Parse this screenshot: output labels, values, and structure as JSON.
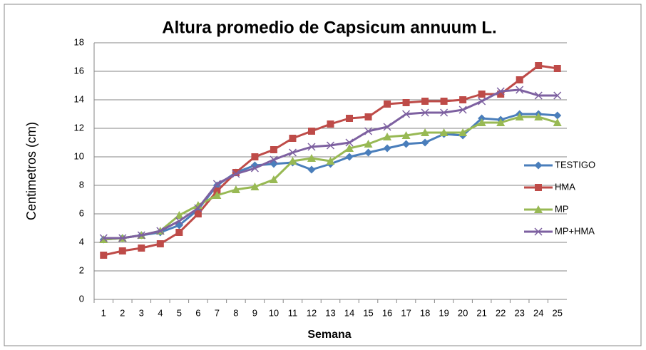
{
  "chart_data": {
    "type": "line",
    "title": "Altura promedio de Capsicum annuum L.",
    "x_label": "Semana",
    "y_label": "Centimetros (cm)",
    "categories": [
      "1",
      "2",
      "3",
      "4",
      "5",
      "6",
      "7",
      "8",
      "9",
      "10",
      "11",
      "12",
      "13",
      "14",
      "15",
      "16",
      "17",
      "18",
      "19",
      "20",
      "21",
      "22",
      "23",
      "24",
      "25"
    ],
    "series": [
      {
        "name": "TESTIGO",
        "color": "#4a7ebb",
        "marker": "diamond",
        "values": [
          4.2,
          4.3,
          4.5,
          4.7,
          5.2,
          6.3,
          8.0,
          8.9,
          9.4,
          9.5,
          9.6,
          9.1,
          9.5,
          10.0,
          10.3,
          10.6,
          10.9,
          11.0,
          11.6,
          11.5,
          12.7,
          12.6,
          13.0,
          13.0,
          12.9
        ]
      },
      {
        "name": "HMA",
        "color": "#be4b48",
        "marker": "square",
        "values": [
          3.1,
          3.4,
          3.6,
          3.9,
          4.7,
          6.0,
          7.6,
          8.9,
          10.0,
          10.5,
          11.3,
          11.8,
          12.3,
          12.7,
          12.8,
          13.7,
          13.8,
          13.9,
          13.9,
          14.0,
          14.4,
          14.4,
          15.4,
          16.4,
          16.2
        ]
      },
      {
        "name": "MP",
        "color": "#98b954",
        "marker": "triangle",
        "values": [
          4.2,
          4.3,
          4.5,
          4.8,
          5.9,
          6.6,
          7.3,
          7.7,
          7.9,
          8.4,
          9.7,
          9.9,
          9.7,
          10.6,
          10.9,
          11.4,
          11.5,
          11.7,
          11.7,
          11.7,
          12.4,
          12.4,
          12.8,
          12.8,
          12.4
        ]
      },
      {
        "name": "MP+HMA",
        "color": "#7d60a0",
        "marker": "x",
        "values": [
          4.3,
          4.3,
          4.5,
          4.8,
          5.5,
          6.4,
          8.1,
          8.8,
          9.2,
          9.8,
          10.3,
          10.7,
          10.8,
          11.0,
          11.8,
          12.1,
          13.0,
          13.1,
          13.1,
          13.3,
          13.9,
          14.6,
          14.7,
          14.3,
          14.3
        ]
      }
    ],
    "ylim": [
      0,
      18
    ],
    "yticks": [
      0,
      2,
      4,
      6,
      8,
      10,
      12,
      14,
      16,
      18
    ],
    "grid": true,
    "legend": "right"
  }
}
